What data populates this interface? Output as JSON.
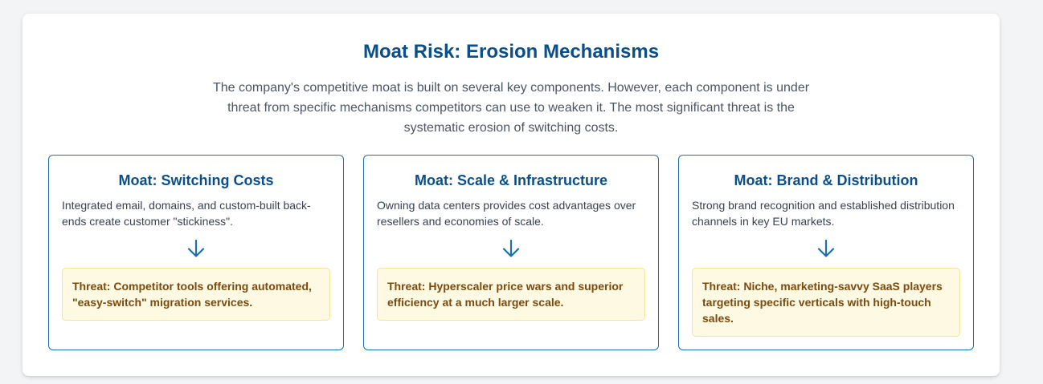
{
  "header": {
    "title": "Moat Risk: Erosion Mechanisms",
    "intro": "The company's competitive moat is built on several key components. However, each component is under threat from specific mechanisms competitors can use to weaken it. The most significant threat is the systematic erosion of switching costs."
  },
  "moats": [
    {
      "title": "Moat: Switching Costs",
      "description": "Integrated email, domains, and custom-built back-ends create customer \"stickiness\".",
      "threat": "Threat: Competitor tools offering automated, \"easy-switch\" migration services."
    },
    {
      "title": "Moat: Scale & Infrastructure",
      "description": "Owning data centers provides cost advantages over resellers and economies of scale.",
      "threat": "Threat: Hyperscaler price wars and superior efficiency at a much larger scale."
    },
    {
      "title": "Moat: Brand & Distribution",
      "description": "Strong brand recognition and established distribution channels in key EU markets.",
      "threat": "Threat: Niche, marketing-savvy SaaS players targeting specific verticals with high-touch sales."
    }
  ],
  "icons": {
    "arrow": "arrow-down-icon"
  },
  "colors": {
    "title": "#0b4f8a",
    "border": "#1a73a8",
    "threat_bg": "#fef9e3",
    "threat_border": "#f7e39a",
    "threat_text": "#7a4a0e"
  }
}
